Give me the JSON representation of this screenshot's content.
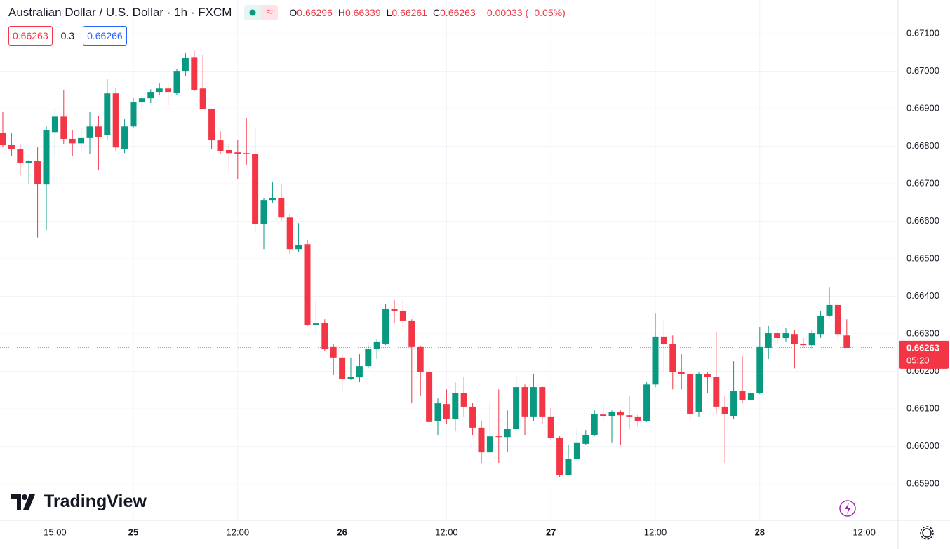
{
  "chart_data": {
    "type": "candlestick",
    "title": "Australian Dollar / U.S. Dollar · 1h · FXCM",
    "ohlc_legend": [
      {
        "label": "O",
        "value": 0.66296
      },
      {
        "label": "H",
        "value": 0.66339
      },
      {
        "label": "L",
        "value": 0.66261
      },
      {
        "label": "C",
        "value": 0.66263
      }
    ],
    "change": {
      "value": -0.00033,
      "label": "−0.00033"
    },
    "change_percent": {
      "value": -0.05,
      "label": "(−0.05%)"
    },
    "bid": 0.66263,
    "spread": 0.3,
    "ask": 0.66266,
    "last_price": {
      "value": 0.66263,
      "label": "0.66263"
    },
    "countdown": "05:20",
    "watermark": "TradingView",
    "up_color": "#089981",
    "down_color": "#f23645",
    "grid": true,
    "categories": [
      null,
      null,
      null,
      null,
      null,
      null,
      "15:00",
      null,
      null,
      null,
      null,
      null,
      null,
      null,
      null,
      "25",
      null,
      null,
      null,
      null,
      null,
      null,
      null,
      null,
      null,
      null,
      null,
      "12:00",
      null,
      null,
      null,
      null,
      null,
      null,
      null,
      null,
      null,
      null,
      null,
      "26",
      null,
      null,
      null,
      null,
      null,
      null,
      null,
      null,
      null,
      null,
      null,
      "12:00",
      null,
      null,
      null,
      null,
      null,
      null,
      null,
      null,
      null,
      null,
      null,
      "27",
      null,
      null,
      null,
      null,
      null,
      null,
      null,
      null,
      null,
      null,
      null,
      "12:00",
      null,
      null,
      null,
      null,
      null,
      null,
      null,
      null,
      null,
      null,
      null,
      "28",
      null,
      null,
      null,
      null,
      null,
      null,
      null,
      null,
      null,
      null,
      null,
      "12:00"
    ],
    "open": [
      0.66835,
      0.66803,
      0.66793,
      0.66756,
      0.6676,
      0.66698,
      0.66838,
      0.66879,
      0.6682,
      0.66808,
      0.66822,
      0.66853,
      0.66831,
      0.66941,
      0.66793,
      0.66853,
      0.66917,
      0.66928,
      0.66945,
      0.66954,
      0.66943,
      0.67001,
      0.67036,
      0.66954,
      0.669,
      0.66816,
      0.6679,
      0.66784,
      0.66782,
      0.66779,
      0.66592,
      0.66657,
      0.66661,
      0.6661,
      0.66526,
      0.66539,
      0.66324,
      0.6633,
      0.66265,
      0.66237,
      0.6618,
      0.66184,
      0.66214,
      0.66259,
      0.66274,
      0.66367,
      0.66362,
      0.66334,
      0.66265,
      0.66199,
      0.66068,
      0.66113,
      0.66074,
      0.66143,
      0.66106,
      0.6605,
      0.65984,
      0.66027,
      0.66025,
      0.66046,
      0.66158,
      0.66078,
      0.66158,
      0.66078,
      0.66022,
      0.65923,
      0.65966,
      0.66007,
      0.66031,
      0.66085,
      0.66081,
      0.66091,
      0.66083,
      0.66078,
      0.66068,
      0.66165,
      0.66293,
      0.66274,
      0.66199,
      0.66193,
      0.66091,
      0.66193,
      0.66186,
      0.66106,
      0.66081,
      0.66148,
      0.66124,
      0.66143,
      0.66261,
      0.66302,
      0.66289,
      0.66298,
      0.66274,
      0.6627,
      0.66298,
      0.66349,
      0.66377,
      0.66296,
      null,
      null
    ],
    "high": [
      0.66891,
      0.66835,
      0.66807,
      0.66764,
      0.66797,
      0.66853,
      0.669,
      0.6695,
      0.66844,
      0.66848,
      0.66891,
      0.66881,
      0.66979,
      0.66956,
      0.66872,
      0.66928,
      0.66937,
      0.66952,
      0.66969,
      0.66965,
      0.67007,
      0.6705,
      0.67055,
      0.67044,
      0.669,
      0.6684,
      0.66807,
      0.66816,
      0.66876,
      0.6685,
      0.66661,
      0.66704,
      0.667,
      0.6662,
      0.66595,
      0.66551,
      0.6639,
      0.66339,
      0.66274,
      0.66246,
      0.66237,
      0.66246,
      0.6627,
      0.66287,
      0.6638,
      0.6639,
      0.6639,
      0.66339,
      0.66268,
      0.66203,
      0.66128,
      0.66152,
      0.66171,
      0.66186,
      0.66115,
      0.66068,
      0.66115,
      0.66152,
      0.66096,
      0.66184,
      0.66165,
      0.66193,
      0.66162,
      0.66102,
      0.66027,
      0.66005,
      0.66046,
      0.66044,
      0.66096,
      0.66115,
      0.66096,
      0.66096,
      0.66134,
      0.66087,
      0.66171,
      0.66354,
      0.66334,
      0.66296,
      0.66246,
      0.66199,
      0.66199,
      0.66199,
      0.66306,
      0.66134,
      0.66227,
      0.6624,
      0.66152,
      0.66317,
      0.66321,
      0.66326,
      0.66315,
      0.66311,
      0.66289,
      0.66311,
      0.66362,
      0.66423,
      0.66382,
      0.66339,
      null,
      null
    ],
    "low": [
      0.66797,
      0.66775,
      0.66722,
      0.667,
      0.66557,
      0.66576,
      0.66775,
      0.66807,
      0.66775,
      0.66788,
      0.66779,
      0.66737,
      0.66816,
      0.66788,
      0.66782,
      0.6685,
      0.669,
      0.66915,
      0.66937,
      0.66909,
      0.66937,
      0.66988,
      0.66947,
      0.669,
      0.66793,
      0.66779,
      0.66732,
      0.66713,
      0.66751,
      0.66573,
      0.66526,
      0.66648,
      0.66601,
      0.66513,
      0.66517,
      0.66321,
      0.66302,
      0.66255,
      0.6619,
      0.66149,
      0.66177,
      0.66171,
      0.66208,
      0.66233,
      0.6627,
      0.6633,
      0.66311,
      0.66115,
      0.66134,
      0.66063,
      0.66031,
      0.66059,
      0.6604,
      0.66078,
      0.66031,
      0.65956,
      0.65979,
      0.65956,
      0.65984,
      0.66031,
      0.66031,
      0.66068,
      0.66059,
      0.66016,
      0.65919,
      0.65923,
      0.6596,
      0.66003,
      0.66027,
      0.66068,
      0.66009,
      0.66003,
      0.66046,
      0.66053,
      0.66065,
      0.66158,
      0.66199,
      0.66152,
      0.66152,
      0.66068,
      0.66078,
      0.66143,
      0.66087,
      0.65956,
      0.66072,
      0.66115,
      0.66124,
      0.66139,
      0.66233,
      0.66274,
      0.66278,
      0.66208,
      0.66263,
      0.66259,
      0.66289,
      0.66345,
      0.66283,
      0.66261,
      null,
      null
    ],
    "close": [
      0.66803,
      0.66793,
      0.66756,
      0.6676,
      0.667,
      0.66844,
      0.66879,
      0.6682,
      0.66808,
      0.66822,
      0.66853,
      0.66825,
      0.66941,
      0.66797,
      0.66853,
      0.66917,
      0.66928,
      0.66945,
      0.66954,
      0.66945,
      0.67001,
      0.67035,
      0.6695,
      0.669,
      0.66816,
      0.66788,
      0.66782,
      0.6678,
      0.66779,
      0.66592,
      0.66657,
      0.66661,
      0.6661,
      0.66526,
      0.66537,
      0.66324,
      0.66328,
      0.66259,
      0.66237,
      0.6618,
      0.66186,
      0.66214,
      0.66259,
      0.66278,
      0.66367,
      0.66362,
      0.66334,
      0.66265,
      0.66199,
      0.66065,
      0.66115,
      0.66074,
      0.66143,
      0.66106,
      0.6605,
      0.65984,
      0.66027,
      0.66025,
      0.66046,
      0.66158,
      0.66078,
      0.66158,
      0.66078,
      0.66022,
      0.65923,
      0.65966,
      0.66009,
      0.66031,
      0.66087,
      0.66081,
      0.66091,
      0.66083,
      0.66078,
      0.66068,
      0.66165,
      0.66293,
      0.66274,
      0.66199,
      0.66193,
      0.66087,
      0.66193,
      0.66186,
      0.66106,
      0.66087,
      0.66148,
      0.66124,
      0.66143,
      0.66265,
      0.66302,
      0.66289,
      0.66302,
      0.66274,
      0.6627,
      0.66302,
      0.66349,
      0.66377,
      0.66298,
      0.66263,
      null,
      null
    ],
    "ylim": [
      0.65803,
      0.6719
    ],
    "yticks": [
      {
        "value": 0.659,
        "label": "0.65900"
      },
      {
        "value": 0.66,
        "label": "0.66000"
      },
      {
        "value": 0.661,
        "label": "0.66100"
      },
      {
        "value": 0.662,
        "label": "0.66200"
      },
      {
        "value": 0.663,
        "label": "0.66300"
      },
      {
        "value": 0.664,
        "label": "0.66400"
      },
      {
        "value": 0.665,
        "label": "0.66500"
      },
      {
        "value": 0.666,
        "label": "0.66600"
      },
      {
        "value": 0.667,
        "label": "0.66700"
      },
      {
        "value": 0.668,
        "label": "0.66800"
      },
      {
        "value": 0.669,
        "label": "0.66900"
      },
      {
        "value": 0.67,
        "label": "0.67000"
      },
      {
        "value": 0.671,
        "label": "0.67100"
      }
    ]
  }
}
